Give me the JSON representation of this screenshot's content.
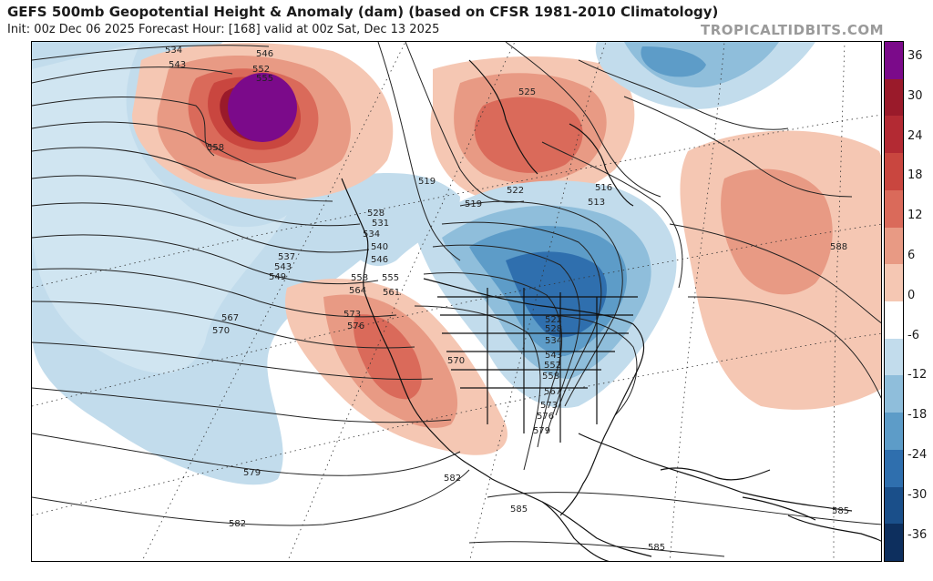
{
  "header": {
    "title": "GEFS 500mb Geopotential Height & Anomaly (dam) (based on CFSR 1981-2010 Climatology)",
    "subtitle": "Init: 00z Dec 06 2025   Forecast Hour: [168]   valid at 00z Sat, Dec 13 2025",
    "brand": "TROPICALTIDBITS.COM"
  },
  "colorbar": {
    "labels": [
      "36",
      "30",
      "24",
      "18",
      "12",
      "6",
      "0",
      "-6",
      "-12",
      "-18",
      "-24",
      "-30",
      "-36"
    ],
    "colors": [
      "#7b0a8a",
      "#9a1a2a",
      "#b32a33",
      "#c9463f",
      "#da6a5a",
      "#e89a84",
      "#f5c7b3",
      "#ffffff",
      "#c2dcec",
      "#8fbedb",
      "#5d9cc8",
      "#2f6fae",
      "#1a4f8a",
      "#0d2f5e"
    ]
  },
  "map": {
    "contour_labels": [
      "534",
      "543",
      "546",
      "552",
      "555",
      "558",
      "525",
      "519",
      "519",
      "522",
      "516",
      "513",
      "528",
      "531",
      "534",
      "540",
      "546",
      "537",
      "543",
      "549",
      "558",
      "555",
      "564",
      "561",
      "567",
      "570",
      "573",
      "576",
      "570",
      "522",
      "528",
      "534",
      "543",
      "552",
      "558",
      "567",
      "573",
      "576",
      "579",
      "582",
      "579",
      "582",
      "585",
      "588",
      "585",
      "585"
    ]
  }
}
